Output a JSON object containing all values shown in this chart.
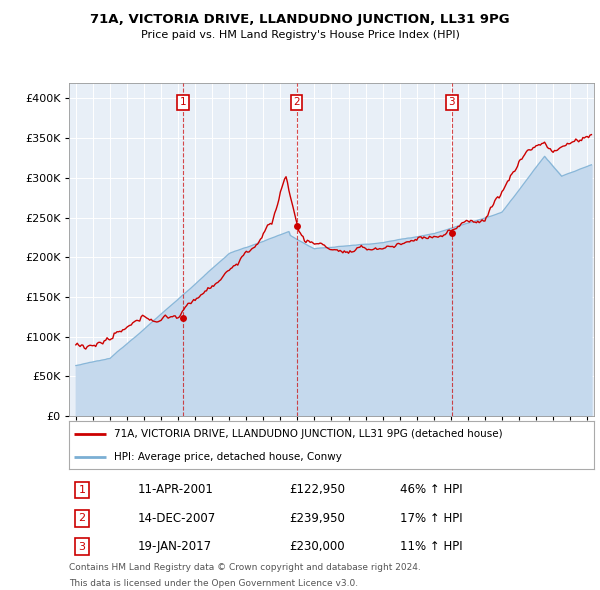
{
  "title": "71A, VICTORIA DRIVE, LLANDUDNO JUNCTION, LL31 9PG",
  "subtitle": "Price paid vs. HM Land Registry's House Price Index (HPI)",
  "legend_line1": "71A, VICTORIA DRIVE, LLANDUDNO JUNCTION, LL31 9PG (detached house)",
  "legend_line2": "HPI: Average price, detached house, Conwy",
  "footer1": "Contains HM Land Registry data © Crown copyright and database right 2024.",
  "footer2": "This data is licensed under the Open Government Licence v3.0.",
  "sale_markers": [
    {
      "num": "1",
      "date": "11-APR-2001",
      "price": "£122,950",
      "pct": "46% ↑ HPI",
      "year": 2001.28,
      "val": 122950
    },
    {
      "num": "2",
      "date": "14-DEC-2007",
      "price": "£239,950",
      "pct": "17% ↑ HPI",
      "year": 2007.95,
      "val": 239950
    },
    {
      "num": "3",
      "date": "19-JAN-2017",
      "price": "£230,000",
      "pct": "11% ↑ HPI",
      "year": 2017.05,
      "val": 230000
    }
  ],
  "red_color": "#cc0000",
  "blue_color": "#7bafd4",
  "blue_fill": "#c5d9ed",
  "plot_bg": "#e8eff7",
  "ylim": [
    0,
    420000
  ],
  "xlim_start": 1994.6,
  "xlim_end": 2025.4
}
